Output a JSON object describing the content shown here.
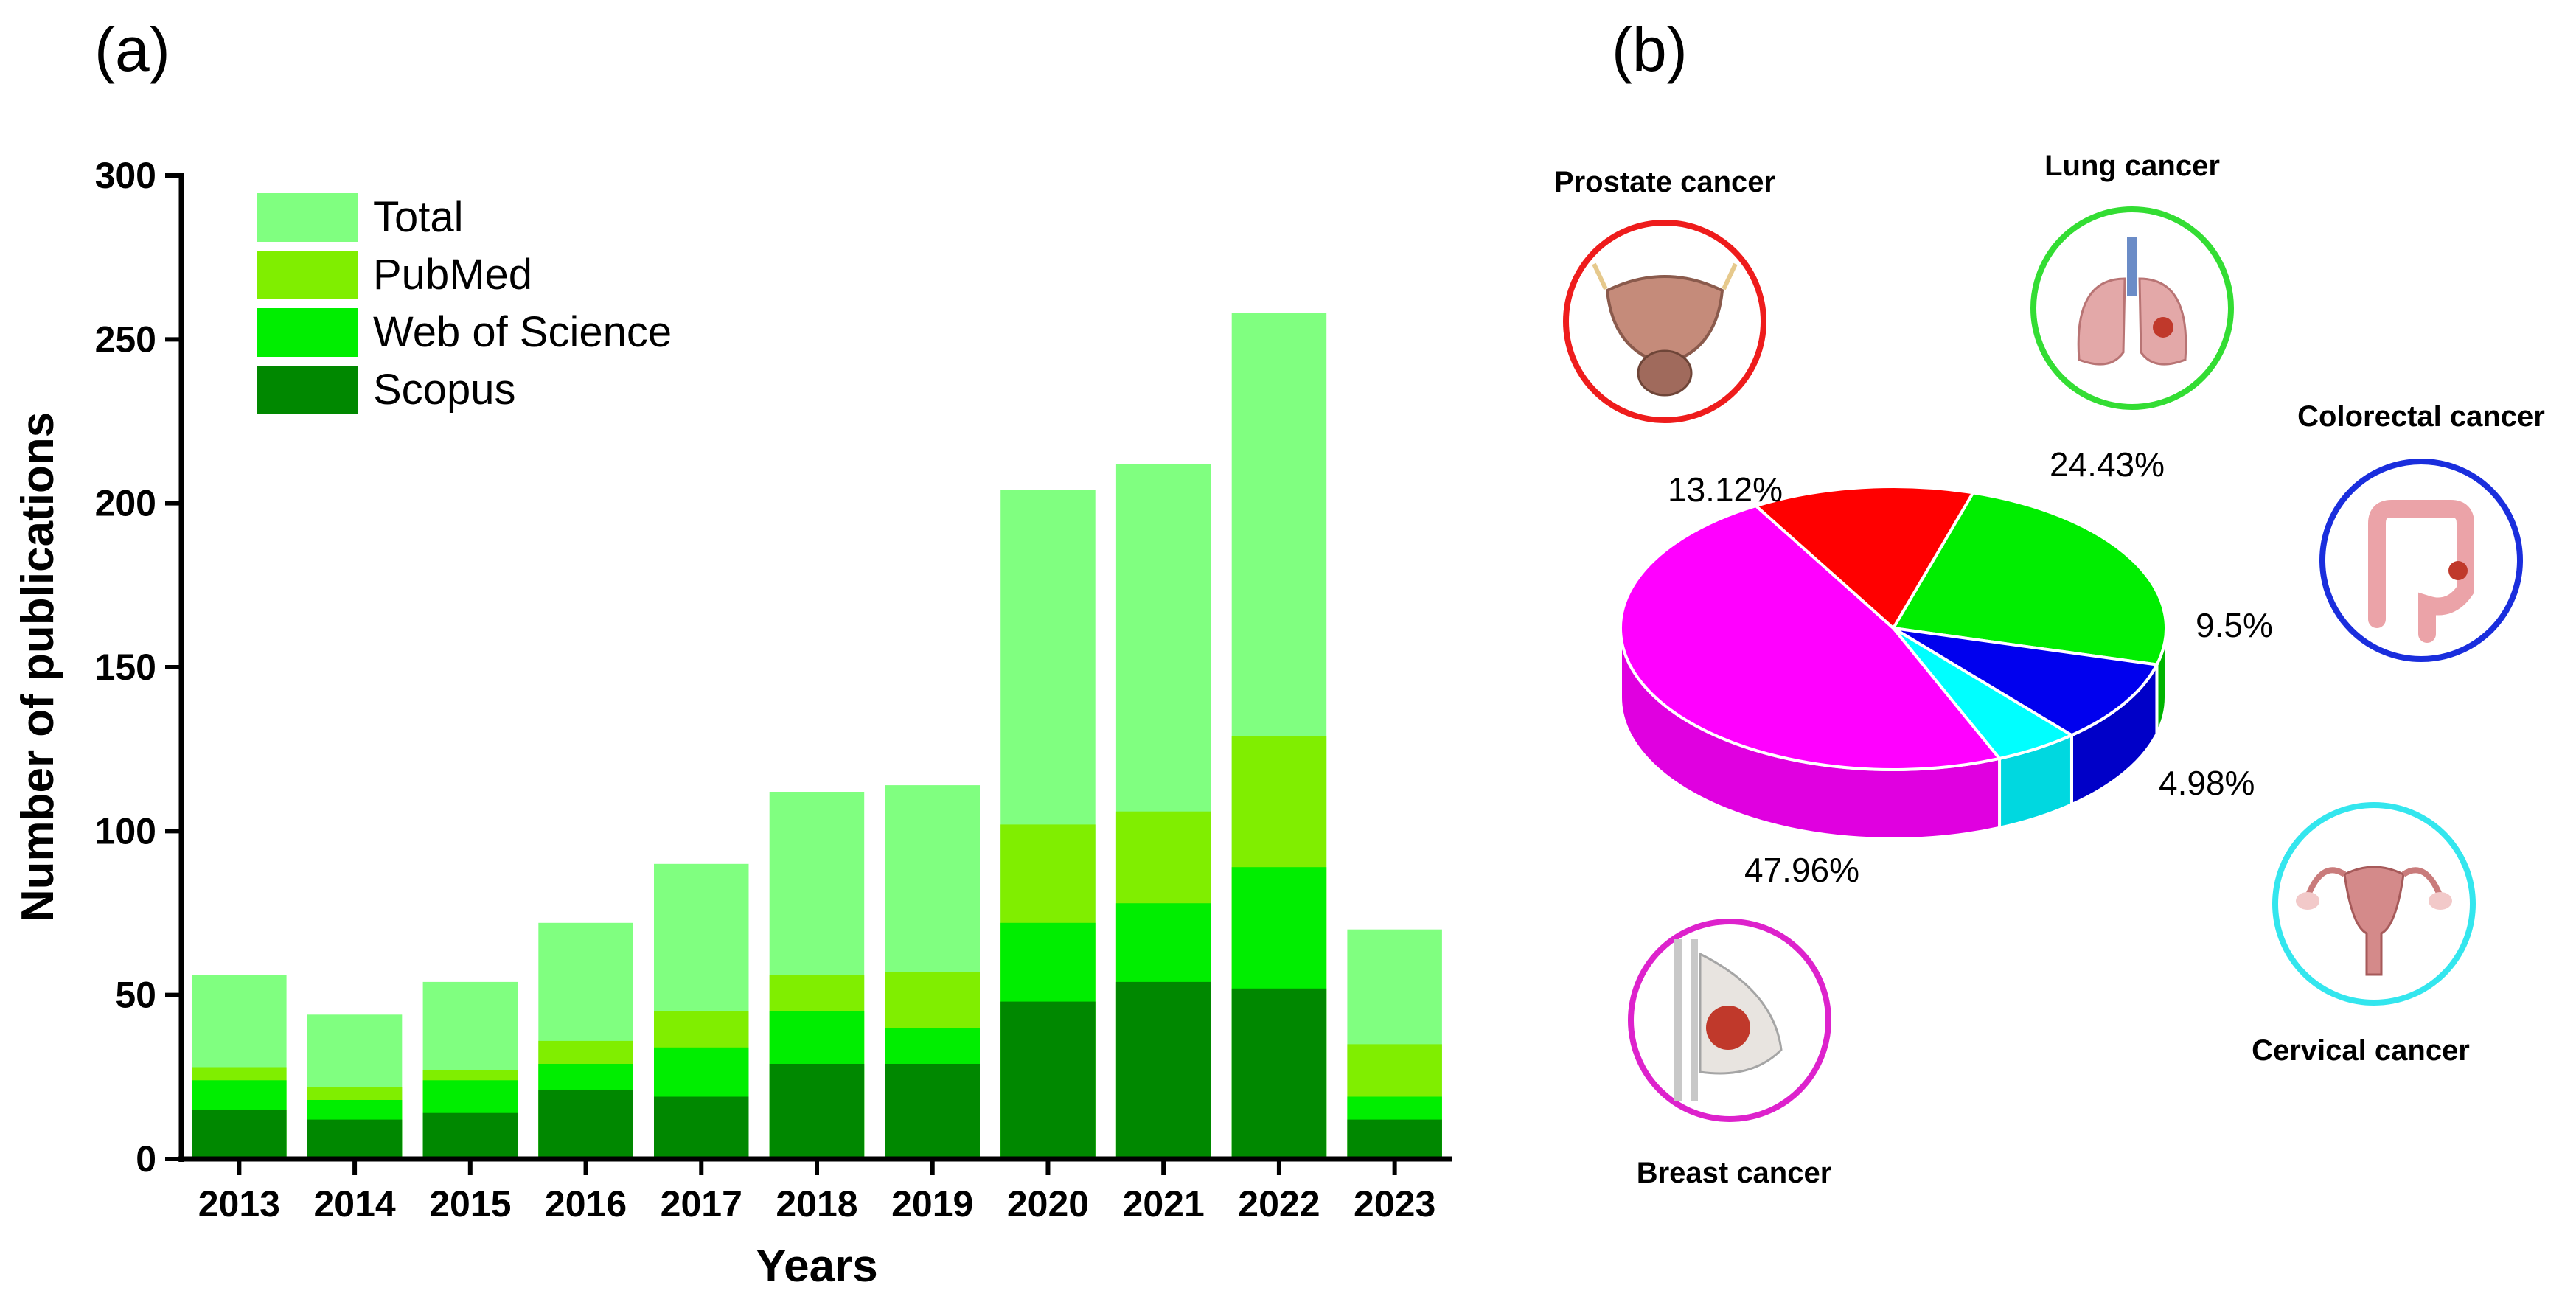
{
  "chart_data": [
    {
      "panel": "(a)",
      "type": "bar",
      "stacked": "overlay",
      "categories": [
        "2013",
        "2014",
        "2015",
        "2016",
        "2017",
        "2018",
        "2019",
        "2020",
        "2021",
        "2022",
        "2023"
      ],
      "series": [
        {
          "name": "Total",
          "color": "#80ff80",
          "values": [
            56,
            44,
            54,
            72,
            90,
            112,
            114,
            204,
            212,
            258,
            70
          ]
        },
        {
          "name": "PubMed",
          "color": "#80ee00",
          "values": [
            28,
            22,
            27,
            36,
            45,
            56,
            57,
            102,
            106,
            129,
            35
          ]
        },
        {
          "name": "Web of Science",
          "color": "#00ee00",
          "values": [
            24,
            18,
            24,
            29,
            34,
            45,
            40,
            72,
            78,
            89,
            19
          ]
        },
        {
          "name": "Scopus",
          "color": "#008800",
          "values": [
            15,
            12,
            14,
            21,
            19,
            29,
            29,
            48,
            54,
            52,
            12
          ]
        }
      ],
      "xlabel": "Years",
      "ylabel": "Number of publications",
      "ylim": [
        0,
        300
      ],
      "yticks": [
        "0",
        "50",
        "100",
        "150",
        "200",
        "250",
        "300"
      ],
      "grid": false,
      "legend_position": "top-left"
    },
    {
      "panel": "(b)",
      "type": "pie",
      "style": "3d",
      "slices": [
        {
          "label": "Prostate cancer",
          "pct_label": "13.12%",
          "value": 13.12,
          "color": "#ff0000",
          "side_color": "#d40000",
          "ring_color": "#ee1c1c",
          "icon": "prostate-icon"
        },
        {
          "label": "Lung cancer",
          "pct_label": "24.43%",
          "value": 24.43,
          "color": "#00ee00",
          "side_color": "#00b400",
          "ring_color": "#33dd33",
          "icon": "lung-icon"
        },
        {
          "label": "Colorectal cancer",
          "pct_label": "9.5%",
          "value": 9.5,
          "color": "#0000ee",
          "side_color": "#0000c8",
          "ring_color": "#1a2edd",
          "icon": "colon-icon"
        },
        {
          "label": "Cervical cancer",
          "pct_label": "4.98%",
          "value": 4.98,
          "color": "#00ffff",
          "side_color": "#00d8e0",
          "ring_color": "#33e6ee",
          "icon": "uterus-icon"
        },
        {
          "label": "Breast cancer",
          "pct_label": "47.96%",
          "value": 47.96,
          "color": "#ff00ff",
          "side_color": "#e000e0",
          "ring_color": "#dd22cc",
          "icon": "breast-icon"
        }
      ]
    }
  ]
}
